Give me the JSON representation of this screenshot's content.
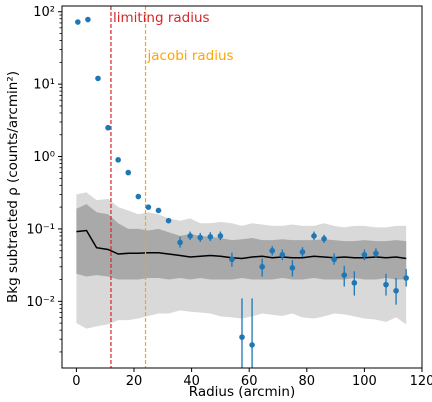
{
  "chart_data": {
    "type": "scatter",
    "xlabel": "Radius (arcmin)",
    "ylabel": "Bkg subtracted ρ (counts/arcmin²)",
    "xlim": [
      -5,
      120
    ],
    "ylim": [
      0.0012,
      120
    ],
    "yscale": "log",
    "x_ticks": [
      0,
      20,
      40,
      60,
      80,
      100,
      120
    ],
    "x_tick_labels": [
      "0",
      "20",
      "40",
      "60",
      "80",
      "100",
      "120"
    ],
    "y_ticks": [
      0.01,
      0.1,
      1,
      10,
      100
    ],
    "y_tick_labels": [
      "10⁻²",
      "10⁻¹",
      "10⁰",
      "10¹",
      "10²"
    ],
    "grid": false,
    "colors": {
      "points": "#1f77b4",
      "limiting": "#d62728",
      "jacobi": "#ffa500",
      "line": "#000000",
      "band_outer": "#d9d9d9",
      "band_inner": "#a9a9a9"
    },
    "vlines": [
      {
        "label": "limiting radius",
        "x": 12,
        "color": "#d62728"
      },
      {
        "label": "jacobi radius",
        "x": 24,
        "color": "#ffa500"
      }
    ],
    "points": [
      {
        "x": 0.5,
        "y": 72
      },
      {
        "x": 4,
        "y": 78
      },
      {
        "x": 7.5,
        "y": 12
      },
      {
        "x": 11,
        "y": 2.5
      },
      {
        "x": 14.5,
        "y": 0.9
      },
      {
        "x": 18,
        "y": 0.6
      },
      {
        "x": 21.5,
        "y": 0.28
      },
      {
        "x": 25,
        "y": 0.2
      },
      {
        "x": 28.5,
        "y": 0.18
      },
      {
        "x": 32,
        "y": 0.13
      }
    ],
    "error_points": [
      {
        "x": 36,
        "y": 0.065,
        "lo": 0.055,
        "hi": 0.078
      },
      {
        "x": 39.5,
        "y": 0.08,
        "lo": 0.07,
        "hi": 0.092
      },
      {
        "x": 43,
        "y": 0.076,
        "lo": 0.066,
        "hi": 0.088
      },
      {
        "x": 46.5,
        "y": 0.078,
        "lo": 0.068,
        "hi": 0.09
      },
      {
        "x": 50,
        "y": 0.08,
        "lo": 0.07,
        "hi": 0.092
      },
      {
        "x": 54,
        "y": 0.038,
        "lo": 0.03,
        "hi": 0.047
      },
      {
        "x": 57.5,
        "y": 0.0032,
        "lo": 0.0009,
        "hi": 0.011
      },
      {
        "x": 61,
        "y": 0.0025,
        "lo": 0.0008,
        "hi": 0.011
      },
      {
        "x": 64.5,
        "y": 0.03,
        "lo": 0.022,
        "hi": 0.039
      },
      {
        "x": 68,
        "y": 0.05,
        "lo": 0.043,
        "hi": 0.058
      },
      {
        "x": 71.5,
        "y": 0.044,
        "lo": 0.037,
        "hi": 0.052
      },
      {
        "x": 75,
        "y": 0.029,
        "lo": 0.022,
        "hi": 0.037
      },
      {
        "x": 78.5,
        "y": 0.048,
        "lo": 0.041,
        "hi": 0.056
      },
      {
        "x": 82.5,
        "y": 0.08,
        "lo": 0.07,
        "hi": 0.092
      },
      {
        "x": 86,
        "y": 0.073,
        "lo": 0.064,
        "hi": 0.083
      },
      {
        "x": 89.5,
        "y": 0.038,
        "lo": 0.032,
        "hi": 0.046
      },
      {
        "x": 93,
        "y": 0.023,
        "lo": 0.016,
        "hi": 0.031
      },
      {
        "x": 96.5,
        "y": 0.018,
        "lo": 0.012,
        "hi": 0.026
      },
      {
        "x": 100,
        "y": 0.044,
        "lo": 0.037,
        "hi": 0.052
      },
      {
        "x": 104,
        "y": 0.046,
        "lo": 0.04,
        "hi": 0.054
      },
      {
        "x": 107.5,
        "y": 0.017,
        "lo": 0.012,
        "hi": 0.024
      },
      {
        "x": 111,
        "y": 0.014,
        "lo": 0.009,
        "hi": 0.021
      },
      {
        "x": 114.5,
        "y": 0.021,
        "lo": 0.016,
        "hi": 0.028
      }
    ],
    "background_line": {
      "x": [
        0,
        3.5,
        7,
        11,
        14.5,
        18,
        21.5,
        25,
        28.5,
        32,
        36,
        39.5,
        43,
        46.5,
        50,
        54,
        57.5,
        61,
        64.5,
        68,
        71.5,
        75,
        78.5,
        82.5,
        86,
        89.5,
        93,
        96.5,
        100,
        104,
        107.5,
        111,
        114.5
      ],
      "y": [
        0.092,
        0.095,
        0.055,
        0.052,
        0.045,
        0.046,
        0.046,
        0.047,
        0.047,
        0.045,
        0.043,
        0.041,
        0.042,
        0.043,
        0.042,
        0.04,
        0.039,
        0.041,
        0.042,
        0.04,
        0.041,
        0.04,
        0.04,
        0.042,
        0.041,
        0.04,
        0.041,
        0.04,
        0.04,
        0.041,
        0.04,
        0.041,
        0.039
      ]
    },
    "inner_band": {
      "x": [
        0,
        3.5,
        7,
        11,
        14.5,
        18,
        21.5,
        25,
        28.5,
        32,
        36,
        39.5,
        43,
        46.5,
        50,
        54,
        57.5,
        61,
        64.5,
        68,
        71.5,
        75,
        78.5,
        82.5,
        86,
        89.5,
        93,
        96.5,
        100,
        104,
        107.5,
        111,
        114.5
      ],
      "upper": [
        0.19,
        0.22,
        0.17,
        0.16,
        0.12,
        0.1,
        0.1,
        0.095,
        0.1,
        0.09,
        0.08,
        0.085,
        0.08,
        0.078,
        0.075,
        0.07,
        0.072,
        0.075,
        0.07,
        0.07,
        0.072,
        0.07,
        0.07,
        0.07,
        0.072,
        0.07,
        0.068,
        0.068,
        0.07,
        0.068,
        0.068,
        0.07,
        0.068
      ],
      "lower": [
        0.024,
        0.022,
        0.023,
        0.022,
        0.02,
        0.02,
        0.02,
        0.021,
        0.021,
        0.02,
        0.021,
        0.02,
        0.021,
        0.02,
        0.02,
        0.02,
        0.021,
        0.02,
        0.02,
        0.02,
        0.021,
        0.02,
        0.02,
        0.021,
        0.02,
        0.02,
        0.02,
        0.021,
        0.02,
        0.02,
        0.021,
        0.02,
        0.02
      ]
    },
    "outer_band": {
      "x": [
        0,
        3.5,
        7,
        11,
        14.5,
        18,
        21.5,
        25,
        28.5,
        32,
        36,
        39.5,
        43,
        46.5,
        50,
        54,
        57.5,
        61,
        64.5,
        68,
        71.5,
        75,
        78.5,
        82.5,
        86,
        89.5,
        93,
        96.5,
        100,
        104,
        107.5,
        111,
        114.5
      ],
      "upper": [
        0.3,
        0.32,
        0.25,
        0.26,
        0.2,
        0.18,
        0.16,
        0.17,
        0.16,
        0.14,
        0.13,
        0.14,
        0.12,
        0.12,
        0.125,
        0.12,
        0.11,
        0.12,
        0.115,
        0.11,
        0.11,
        0.115,
        0.11,
        0.11,
        0.12,
        0.11,
        0.105,
        0.11,
        0.11,
        0.105,
        0.105,
        0.11,
        0.11
      ],
      "lower": [
        0.005,
        0.0042,
        0.0045,
        0.0048,
        0.0055,
        0.0055,
        0.0058,
        0.0063,
        0.0068,
        0.0068,
        0.0075,
        0.0072,
        0.007,
        0.0068,
        0.0062,
        0.006,
        0.0058,
        0.0062,
        0.0068,
        0.0065,
        0.0063,
        0.0068,
        0.006,
        0.0058,
        0.0062,
        0.0068,
        0.0066,
        0.0062,
        0.0058,
        0.0056,
        0.0052,
        0.006,
        0.0048
      ]
    }
  }
}
